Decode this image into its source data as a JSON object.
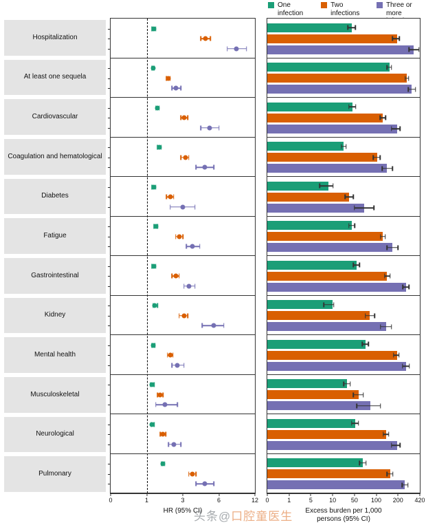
{
  "legend": [
    {
      "key": "one",
      "label": "One infection",
      "color": "#1b9e77"
    },
    {
      "key": "two",
      "label": "Two infections",
      "color": "#d95f02"
    },
    {
      "key": "three",
      "label": "Three or more infections",
      "color": "#7570b3"
    }
  ],
  "hr_axis": {
    "label": "HR (95% CI)",
    "ticks": [
      0,
      1,
      3,
      6,
      12
    ],
    "reference_line": 1
  },
  "burden_axis": {
    "label_line1": "Excess burden per 1,000",
    "label_line2": "persons (95% CI)",
    "ticks": [
      0,
      1,
      5,
      10,
      50,
      100,
      200,
      420
    ]
  },
  "watermark": {
    "prefix": "头条@",
    "name": "口腔童医生"
  },
  "chart_data": {
    "type": "forest+bar",
    "panels": [
      {
        "id": "hr",
        "type": "scatter",
        "xlabel": "HR (95% CI)",
        "xticks": [
          0,
          1,
          3,
          6,
          12
        ],
        "reference_line": 1
      },
      {
        "id": "burden",
        "type": "bar",
        "xlabel": "Excess burden per 1,000 persons (95% CI)",
        "xticks": [
          0,
          1,
          5,
          10,
          50,
          100,
          200,
          420
        ]
      }
    ],
    "series_order": [
      "one",
      "two",
      "three"
    ],
    "series_labels": {
      "one": "One infection",
      "two": "Two infections",
      "three": "Three or more infections"
    },
    "value_format": "[estimate, ci_low, ci_high]",
    "outcomes": [
      {
        "name": "Hospitalization",
        "hr": {
          "one": [
            1.4,
            1.3,
            1.5
          ],
          "two": [
            4.9,
            4.5,
            5.3
          ],
          "three": [
            8.9,
            7.4,
            10.6
          ]
        },
        "burden": {
          "one": [
            45,
            38,
            52
          ],
          "two": [
            195,
            175,
            215
          ],
          "three": [
            360,
            310,
            410
          ]
        }
      },
      {
        "name": "At least one sequela",
        "hr": {
          "one": [
            1.35,
            1.3,
            1.4
          ],
          "two": [
            2.2,
            2.1,
            2.3
          ],
          "three": [
            2.6,
            2.4,
            2.9
          ]
        },
        "burden": {
          "one": [
            160,
            150,
            170
          ],
          "two": [
            290,
            272,
            308
          ],
          "three": [
            340,
            305,
            375
          ]
        }
      },
      {
        "name": "Cardiovascular",
        "hr": {
          "one": [
            1.6,
            1.5,
            1.7
          ],
          "two": [
            3.1,
            2.9,
            3.4
          ],
          "three": [
            5.2,
            4.5,
            6.0
          ]
        },
        "burden": {
          "one": [
            46,
            40,
            53
          ],
          "two": [
            130,
            118,
            143
          ],
          "three": [
            195,
            170,
            220
          ]
        }
      },
      {
        "name": "Coagulation and hematological",
        "hr": {
          "one": [
            1.7,
            1.6,
            1.8
          ],
          "two": [
            3.2,
            2.9,
            3.5
          ],
          "three": [
            4.8,
            4.1,
            5.6
          ]
        },
        "burden": {
          "one": [
            30,
            26,
            35
          ],
          "two": [
            105,
            93,
            118
          ],
          "three": [
            150,
            128,
            175
          ]
        }
      },
      {
        "name": "Diabetes",
        "hr": {
          "one": [
            1.4,
            1.3,
            1.5
          ],
          "two": [
            2.3,
            2.1,
            2.5
          ],
          "three": [
            3.0,
            2.3,
            4.0
          ]
        },
        "burden": {
          "one": [
            9,
            7,
            11
          ],
          "two": [
            40,
            33,
            48
          ],
          "three": [
            72,
            50,
            95
          ]
        }
      },
      {
        "name": "Fatigue",
        "hr": {
          "one": [
            1.5,
            1.4,
            1.6
          ],
          "two": [
            2.8,
            2.6,
            3.0
          ],
          "three": [
            3.8,
            3.3,
            4.4
          ]
        },
        "burden": {
          "one": [
            45,
            40,
            51
          ],
          "two": [
            130,
            119,
            142
          ],
          "three": [
            175,
            150,
            200
          ]
        }
      },
      {
        "name": "Gastrointestinal",
        "hr": {
          "one": [
            1.4,
            1.3,
            1.5
          ],
          "two": [
            2.6,
            2.4,
            2.8
          ],
          "three": [
            3.5,
            3.1,
            4.0
          ]
        },
        "burden": {
          "one": [
            55,
            48,
            62
          ],
          "two": [
            150,
            138,
            163
          ],
          "three": [
            280,
            250,
            310
          ]
        }
      },
      {
        "name": "Kidney",
        "hr": {
          "one": [
            1.45,
            1.35,
            1.6
          ],
          "two": [
            3.1,
            2.8,
            3.4
          ],
          "three": [
            5.6,
            4.6,
            6.8
          ]
        },
        "burden": {
          "one": [
            10,
            8,
            12
          ],
          "two": [
            85,
            75,
            96
          ],
          "three": [
            145,
            120,
            170
          ]
        }
      },
      {
        "name": "Mental health",
        "hr": {
          "one": [
            1.35,
            1.3,
            1.45
          ],
          "two": [
            2.3,
            2.15,
            2.45
          ],
          "three": [
            2.7,
            2.4,
            3.1
          ]
        },
        "burden": {
          "one": [
            75,
            68,
            82
          ],
          "two": [
            195,
            180,
            210
          ],
          "three": [
            280,
            245,
            315
          ]
        }
      },
      {
        "name": "Musculoskeletal",
        "hr": {
          "one": [
            1.3,
            1.2,
            1.4
          ],
          "two": [
            1.75,
            1.6,
            1.9
          ],
          "three": [
            2.0,
            1.5,
            2.7
          ]
        },
        "burden": {
          "one": [
            36,
            30,
            42
          ],
          "two": [
            59,
            48,
            70
          ],
          "three": [
            87,
            55,
            120
          ]
        }
      },
      {
        "name": "Neurological",
        "hr": {
          "one": [
            1.3,
            1.25,
            1.4
          ],
          "two": [
            1.9,
            1.75,
            2.05
          ],
          "three": [
            2.5,
            2.2,
            2.9
          ]
        },
        "burden": {
          "one": [
            52,
            45,
            59
          ],
          "two": [
            145,
            132,
            158
          ],
          "three": [
            195,
            170,
            222
          ]
        }
      },
      {
        "name": "Pulmonary",
        "hr": {
          "one": [
            1.9,
            1.8,
            2.0
          ],
          "two": [
            3.8,
            3.5,
            4.1
          ],
          "three": [
            4.8,
            4.1,
            5.6
          ]
        },
        "burden": {
          "one": [
            69,
            62,
            77
          ],
          "two": [
            163,
            150,
            177
          ],
          "three": [
            270,
            240,
            300
          ]
        }
      }
    ]
  }
}
